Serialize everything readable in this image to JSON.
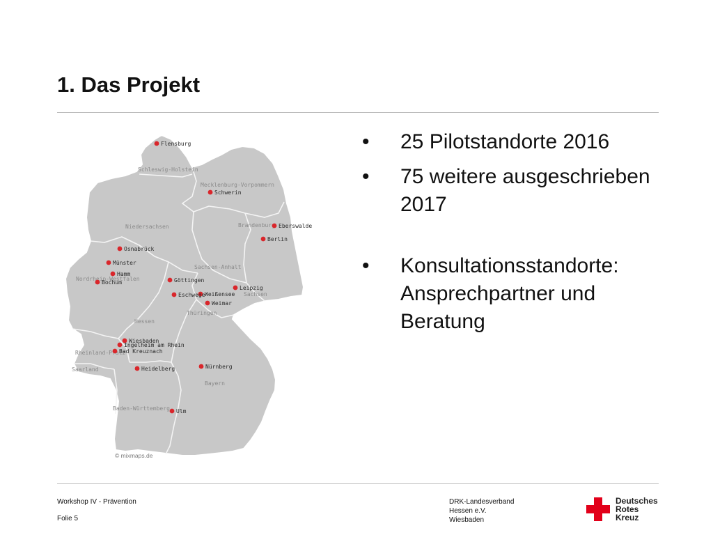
{
  "slide": {
    "title": "1. Das Projekt"
  },
  "bullets": [
    {
      "marker": "•",
      "text": "25 Pilotstandorte 2016"
    },
    {
      "marker": "•",
      "text": "75 weitere ausgeschrieben 2017"
    },
    {
      "marker": "•",
      "text": "Konsultationsstandorte: Ansprechpartner und Beratung"
    }
  ],
  "map": {
    "credit": "© mixmaps.de",
    "states": {
      "sh": "Schleswig-Holstein",
      "mv": "Mecklenburg-Vorpommern",
      "ni": "Niedersachsen",
      "bb": "Brandenburg",
      "st": "Sachsen-Anhalt",
      "nw": "Nordrhein-Westfalen",
      "sn": "Sachsen",
      "th": "Thüringen",
      "he": "Hessen",
      "rp": "Rheinland-Pfalz",
      "sl": "Saarland",
      "by": "Bayern",
      "bw": "Baden-Württemberg"
    },
    "cities": {
      "flensburg": "Flensburg",
      "schwerin": "Schwerin",
      "eberswalde": "Eberswalde",
      "berlin": "Berlin",
      "osnabrueck": "Osnabrück",
      "muenster": "Münster",
      "hamm": "Hamm",
      "bochum": "Bochum",
      "goettingen": "Göttingen",
      "leipzig": "Leipzig",
      "eschwege": "Eschwege",
      "weissensee": "Weißensee",
      "weimar": "Weimar",
      "wiesbaden": "Wiesbaden",
      "ingelheim": "Ingelheim am Rhein",
      "badkreuznach": "Bad Kreuznach",
      "heidelberg": "Heidelberg",
      "nuernberg": "Nürnberg",
      "ulm": "Ulm"
    },
    "marker_color": "#d9262b"
  },
  "footer": {
    "event": "Workshop IV - Prävention",
    "slide_number": "Folie 5",
    "org_line1": "DRK-Landesverband",
    "org_line2": "Hessen e.V.",
    "org_line3": "Wiesbaden"
  },
  "logo": {
    "line1": "Deutsches",
    "line2": "Rotes",
    "line3": "Kreuz",
    "color": "#e2001a"
  }
}
